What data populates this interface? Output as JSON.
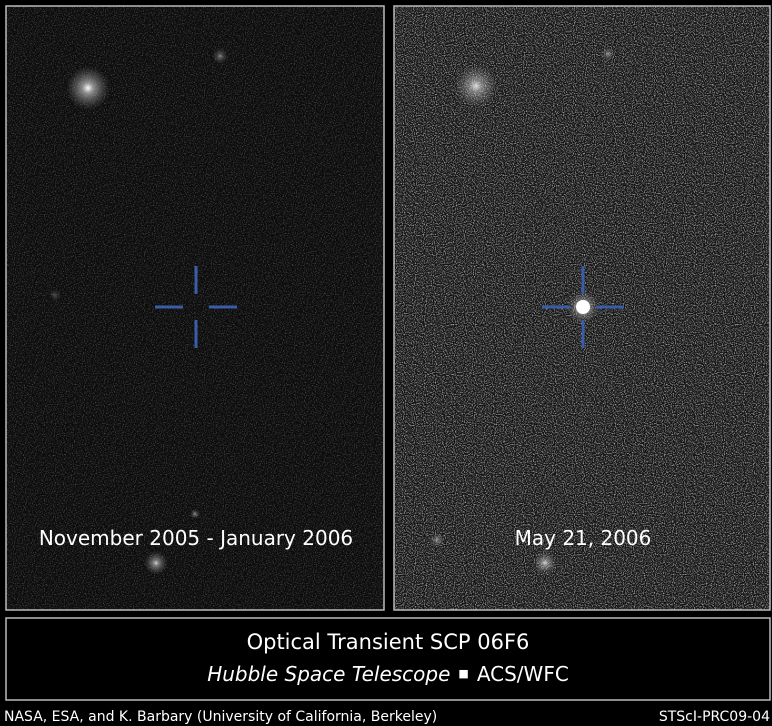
{
  "panels": [
    {
      "caption": "November 2005 - January 2006"
    },
    {
      "caption": "May 21, 2006"
    }
  ],
  "title": "Optical Transient SCP 06F6",
  "subtitle": {
    "telescope": "Hubble Space Telescope",
    "instrument": "ACS/WFC"
  },
  "credit": {
    "left": "NASA, ESA, and K. Barbary (University of California, Berkeley)",
    "right": "STScI-PRC09-04"
  }
}
